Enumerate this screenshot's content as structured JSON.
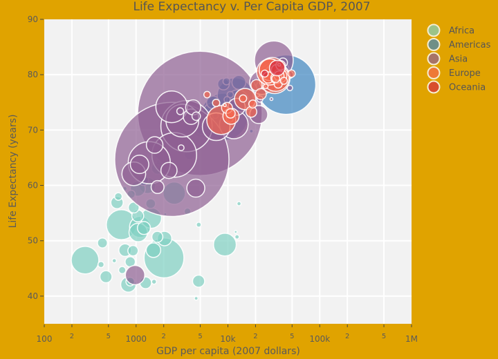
{
  "chart_data": {
    "type": "scatter",
    "title": "Life Expectancy v. Per Capita GDP, 2007",
    "xlabel": "GDP per capita (2007 dollars)",
    "ylabel": "Life Expectancy (years)",
    "x_scale": "log",
    "xlim": [
      100,
      1000000
    ],
    "ylim": [
      35,
      90
    ],
    "grid": true,
    "legend_position": "top-right",
    "marker_size_encodes": "population",
    "x_ticks": [
      {
        "value": 100,
        "label": "100"
      },
      {
        "value": 200,
        "label": "2"
      },
      {
        "value": 500,
        "label": "5"
      },
      {
        "value": 1000,
        "label": "1000"
      },
      {
        "value": 2000,
        "label": "2"
      },
      {
        "value": 5000,
        "label": "5"
      },
      {
        "value": 10000,
        "label": "10k"
      },
      {
        "value": 20000,
        "label": "2"
      },
      {
        "value": 50000,
        "label": "5"
      },
      {
        "value": 100000,
        "label": "100k"
      },
      {
        "value": 200000,
        "label": "2"
      },
      {
        "value": 500000,
        "label": "5"
      },
      {
        "value": 1000000,
        "label": "1M"
      }
    ],
    "y_ticks": [
      {
        "value": 40,
        "label": "40"
      },
      {
        "value": 50,
        "label": "50"
      },
      {
        "value": 60,
        "label": "60"
      },
      {
        "value": 70,
        "label": "70"
      },
      {
        "value": 80,
        "label": "80"
      },
      {
        "value": 90,
        "label": "90"
      }
    ],
    "series": [
      {
        "name": "Africa",
        "color": "#7fd0c2",
        "points": [
          {
            "x": 6223,
            "y": 72.3,
            "pop": 33333216
          },
          {
            "x": 4797,
            "y": 42.7,
            "pop": 12420476
          },
          {
            "x": 1441,
            "y": 56.7,
            "pop": 8078314
          },
          {
            "x": 12570,
            "y": 50.7,
            "pop": 1639131
          },
          {
            "x": 1217,
            "y": 52.3,
            "pop": 14326203
          },
          {
            "x": 430,
            "y": 49.6,
            "pop": 8390505
          },
          {
            "x": 2042,
            "y": 50.4,
            "pop": 17696293
          },
          {
            "x": 706,
            "y": 44.7,
            "pop": 4369038
          },
          {
            "x": 1704,
            "y": 50.7,
            "pop": 10238807
          },
          {
            "x": 986,
            "y": 65.2,
            "pop": 710960
          },
          {
            "x": 278,
            "y": 46.5,
            "pop": 64606759
          },
          {
            "x": 3633,
            "y": 55.3,
            "pop": 3800610
          },
          {
            "x": 1545,
            "y": 48.3,
            "pop": 18013409
          },
          {
            "x": 2082,
            "y": 54.8,
            "pop": 496374
          },
          {
            "x": 5581,
            "y": 71.3,
            "pop": 80264543
          },
          {
            "x": 12154,
            "y": 51.6,
            "pop": 551201
          },
          {
            "x": 641,
            "y": 58.0,
            "pop": 4906585
          },
          {
            "x": 691,
            "y": 52.9,
            "pop": 76511887
          },
          {
            "x": 13206,
            "y": 56.7,
            "pop": 1454867
          },
          {
            "x": 753,
            "y": 59.4,
            "pop": 1688359
          },
          {
            "x": 1328,
            "y": 60.0,
            "pop": 22873338
          },
          {
            "x": 943,
            "y": 56.0,
            "pop": 9947814
          },
          {
            "x": 579,
            "y": 46.4,
            "pop": 1472041
          },
          {
            "x": 1463,
            "y": 54.1,
            "pop": 35610177
          },
          {
            "x": 1569,
            "y": 42.6,
            "pop": 2012649
          },
          {
            "x": 415,
            "y": 45.7,
            "pop": 3193942
          },
          {
            "x": 12058,
            "y": 74.0,
            "pop": 6036914
          },
          {
            "x": 1045,
            "y": 59.4,
            "pop": 19167654
          },
          {
            "x": 759,
            "y": 48.3,
            "pop": 13327079
          },
          {
            "x": 1043,
            "y": 54.5,
            "pop": 12031795
          },
          {
            "x": 1803,
            "y": 64.2,
            "pop": 3270065
          },
          {
            "x": 10957,
            "y": 72.8,
            "pop": 1250882
          },
          {
            "x": 3820,
            "y": 71.2,
            "pop": 33757175
          },
          {
            "x": 824,
            "y": 42.1,
            "pop": 19951656
          },
          {
            "x": 4811,
            "y": 52.9,
            "pop": 2055080
          },
          {
            "x": 620,
            "y": 56.9,
            "pop": 12894865
          },
          {
            "x": 2014,
            "y": 46.9,
            "pop": 135031164
          },
          {
            "x": 7670,
            "y": 76.4,
            "pop": 798094
          },
          {
            "x": 863,
            "y": 46.2,
            "pop": 8860588
          },
          {
            "x": 1598,
            "y": 65.5,
            "pop": 199579
          },
          {
            "x": 1712,
            "y": 63.1,
            "pop": 12267493
          },
          {
            "x": 863,
            "y": 42.6,
            "pop": 6144562
          },
          {
            "x": 926,
            "y": 48.2,
            "pop": 9118773
          },
          {
            "x": 9270,
            "y": 49.3,
            "pop": 43997828
          },
          {
            "x": 2602,
            "y": 58.6,
            "pop": 42292929
          },
          {
            "x": 4513,
            "y": 39.6,
            "pop": 1133066
          },
          {
            "x": 1107,
            "y": 52.5,
            "pop": 38139640
          },
          {
            "x": 883,
            "y": 58.4,
            "pop": 5701579
          },
          {
            "x": 7093,
            "y": 73.9,
            "pop": 10276158
          },
          {
            "x": 1056,
            "y": 51.5,
            "pop": 29170398
          },
          {
            "x": 1271,
            "y": 42.4,
            "pop": 11746035
          },
          {
            "x": 470,
            "y": 43.5,
            "pop": 12311143
          }
        ]
      },
      {
        "name": "Americas",
        "color": "#3f86c0",
        "points": [
          {
            "x": 12779,
            "y": 75.3,
            "pop": 40301927
          },
          {
            "x": 3822,
            "y": 65.6,
            "pop": 9119152
          },
          {
            "x": 9066,
            "y": 72.4,
            "pop": 190010647
          },
          {
            "x": 36319,
            "y": 80.7,
            "pop": 33390141
          },
          {
            "x": 13172,
            "y": 78.6,
            "pop": 16284741
          },
          {
            "x": 7007,
            "y": 72.9,
            "pop": 44227550
          },
          {
            "x": 9645,
            "y": 78.8,
            "pop": 4133884
          },
          {
            "x": 8948,
            "y": 78.3,
            "pop": 11416987
          },
          {
            "x": 6025,
            "y": 72.2,
            "pop": 9319622
          },
          {
            "x": 6873,
            "y": 75.0,
            "pop": 13755680
          },
          {
            "x": 5728,
            "y": 71.9,
            "pop": 6939688
          },
          {
            "x": 5186,
            "y": 70.3,
            "pop": 12572928
          },
          {
            "x": 1202,
            "y": 60.9,
            "pop": 8502814
          },
          {
            "x": 3548,
            "y": 70.2,
            "pop": 7483763
          },
          {
            "x": 7321,
            "y": 72.6,
            "pop": 2780132
          },
          {
            "x": 11978,
            "y": 76.2,
            "pop": 108700891
          },
          {
            "x": 2749,
            "y": 72.9,
            "pop": 5675356
          },
          {
            "x": 9809,
            "y": 75.5,
            "pop": 3242173
          },
          {
            "x": 4173,
            "y": 71.8,
            "pop": 6667147
          },
          {
            "x": 7409,
            "y": 71.4,
            "pop": 28674757
          },
          {
            "x": 19329,
            "y": 78.7,
            "pop": 3942491
          },
          {
            "x": 18009,
            "y": 69.8,
            "pop": 1056608
          },
          {
            "x": 42952,
            "y": 78.2,
            "pop": 301139947
          },
          {
            "x": 10611,
            "y": 76.4,
            "pop": 3447496
          },
          {
            "x": 11416,
            "y": 73.7,
            "pop": 26084662
          }
        ]
      },
      {
        "name": "Asia",
        "color": "#8f5f93",
        "points": [
          {
            "x": 975,
            "y": 43.8,
            "pop": 31889923
          },
          {
            "x": 29796,
            "y": 75.6,
            "pop": 708573
          },
          {
            "x": 1391,
            "y": 64.1,
            "pop": 150448339
          },
          {
            "x": 1714,
            "y": 59.7,
            "pop": 14131858
          },
          {
            "x": 4959,
            "y": 73.0,
            "pop": 1318683096
          },
          {
            "x": 39725,
            "y": 82.2,
            "pop": 6980412
          },
          {
            "x": 2452,
            "y": 64.7,
            "pop": 1110396331
          },
          {
            "x": 3541,
            "y": 70.7,
            "pop": 223547000
          },
          {
            "x": 11606,
            "y": 71.0,
            "pop": 69453570
          },
          {
            "x": 4471,
            "y": 59.5,
            "pop": 27499638
          },
          {
            "x": 25523,
            "y": 80.7,
            "pop": 6426679
          },
          {
            "x": 31656,
            "y": 82.6,
            "pop": 127467972
          },
          {
            "x": 4519,
            "y": 72.5,
            "pop": 6053193
          },
          {
            "x": 1593,
            "y": 67.3,
            "pop": 23301725
          },
          {
            "x": 23348,
            "y": 78.6,
            "pop": 49044790
          },
          {
            "x": 47307,
            "y": 77.6,
            "pop": 2505559
          },
          {
            "x": 10461,
            "y": 72.0,
            "pop": 3921278
          },
          {
            "x": 12452,
            "y": 74.2,
            "pop": 24821286
          },
          {
            "x": 3096,
            "y": 66.8,
            "pop": 2874127
          },
          {
            "x": 944,
            "y": 62.1,
            "pop": 47761980
          },
          {
            "x": 1091,
            "y": 63.8,
            "pop": 28901790
          },
          {
            "x": 22316,
            "y": 75.6,
            "pop": 3204897
          },
          {
            "x": 2606,
            "y": 65.5,
            "pop": 169270617
          },
          {
            "x": 3190,
            "y": 71.7,
            "pop": 91077287
          },
          {
            "x": 21655,
            "y": 72.8,
            "pop": 27601038
          },
          {
            "x": 47143,
            "y": 80.0,
            "pop": 4553009
          },
          {
            "x": 3970,
            "y": 72.4,
            "pop": 20378239
          },
          {
            "x": 4185,
            "y": 74.1,
            "pop": 19314747
          },
          {
            "x": 28718,
            "y": 78.4,
            "pop": 23174294
          },
          {
            "x": 7458,
            "y": 70.6,
            "pop": 65068149
          },
          {
            "x": 2442,
            "y": 74.2,
            "pop": 85262356
          },
          {
            "x": 3025,
            "y": 73.4,
            "pop": 4018332
          },
          {
            "x": 2281,
            "y": 62.7,
            "pop": 22211743
          }
        ]
      },
      {
        "name": "Europe",
        "color": "#f3674f",
        "points": [
          {
            "x": 5937,
            "y": 76.4,
            "pop": 3600523
          },
          {
            "x": 36126,
            "y": 79.8,
            "pop": 8199783
          },
          {
            "x": 33693,
            "y": 79.4,
            "pop": 10392226
          },
          {
            "x": 7446,
            "y": 74.9,
            "pop": 4552198
          },
          {
            "x": 10681,
            "y": 73.0,
            "pop": 7322858
          },
          {
            "x": 14619,
            "y": 75.7,
            "pop": 4493312
          },
          {
            "x": 22833,
            "y": 76.5,
            "pop": 10228744
          },
          {
            "x": 35278,
            "y": 78.3,
            "pop": 5468120
          },
          {
            "x": 33207,
            "y": 79.3,
            "pop": 5238460
          },
          {
            "x": 30470,
            "y": 80.7,
            "pop": 61083916
          },
          {
            "x": 32170,
            "y": 79.4,
            "pop": 82400996
          },
          {
            "x": 27538,
            "y": 79.5,
            "pop": 10706290
          },
          {
            "x": 18009,
            "y": 73.3,
            "pop": 9956108
          },
          {
            "x": 36181,
            "y": 81.8,
            "pop": 301931
          },
          {
            "x": 40676,
            "y": 78.9,
            "pop": 4109086
          },
          {
            "x": 28570,
            "y": 80.5,
            "pop": 58147733
          },
          {
            "x": 9254,
            "y": 74.5,
            "pop": 684736
          },
          {
            "x": 36798,
            "y": 79.8,
            "pop": 16570613
          },
          {
            "x": 49357,
            "y": 80.2,
            "pop": 4627926
          },
          {
            "x": 15390,
            "y": 75.6,
            "pop": 38518241
          },
          {
            "x": 20510,
            "y": 78.1,
            "pop": 10642836
          },
          {
            "x": 10808,
            "y": 72.5,
            "pop": 22276056
          },
          {
            "x": 9787,
            "y": 74.0,
            "pop": 10150265
          },
          {
            "x": 18678,
            "y": 74.7,
            "pop": 5447502
          },
          {
            "x": 25768,
            "y": 77.9,
            "pop": 2009245
          },
          {
            "x": 28821,
            "y": 80.9,
            "pop": 40448191
          },
          {
            "x": 33860,
            "y": 80.9,
            "pop": 9031088
          },
          {
            "x": 37506,
            "y": 81.7,
            "pop": 7554661
          },
          {
            "x": 8458,
            "y": 71.8,
            "pop": 71158647
          },
          {
            "x": 33203,
            "y": 79.4,
            "pop": 60776238
          }
        ]
      },
      {
        "name": "Oceania",
        "color": "#d42a3e",
        "points": [
          {
            "x": 34435,
            "y": 81.2,
            "pop": 20434176
          },
          {
            "x": 25185,
            "y": 80.2,
            "pop": 4115771
          }
        ]
      }
    ]
  }
}
